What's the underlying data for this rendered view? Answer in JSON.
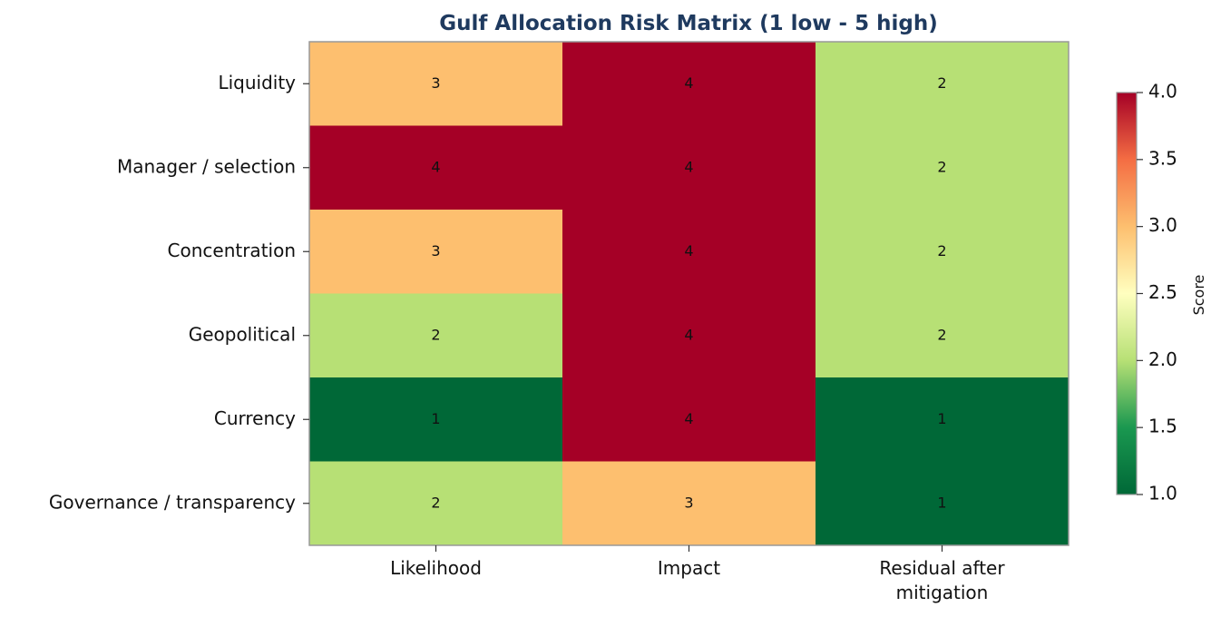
{
  "chart_data": {
    "type": "heatmap",
    "title": "Gulf Allocation Risk Matrix (1 low - 5 high)",
    "rows": [
      "Liquidity",
      "Manager / selection",
      "Concentration",
      "Geopolitical",
      "Currency",
      "Governance / transparency"
    ],
    "columns": [
      {
        "lines": [
          "Likelihood"
        ]
      },
      {
        "lines": [
          "Impact"
        ]
      },
      {
        "lines": [
          "Residual after",
          "mitigation"
        ]
      }
    ],
    "values": [
      [
        3,
        4,
        2
      ],
      [
        4,
        4,
        2
      ],
      [
        3,
        4,
        2
      ],
      [
        2,
        4,
        2
      ],
      [
        1,
        4,
        1
      ],
      [
        2,
        3,
        1
      ]
    ],
    "colormap": "RdYlGn_r",
    "color_range": [
      1.0,
      4.0
    ],
    "colorbar": {
      "label": "Score",
      "ticks": [
        "1.0",
        "1.5",
        "2.0",
        "2.5",
        "3.0",
        "3.5",
        "4.0"
      ]
    },
    "palette": {
      "1": "#006837",
      "2": "#b7e075",
      "3": "#fdbf6f",
      "4": "#a50026",
      "title": "#1f3a5f"
    }
  }
}
